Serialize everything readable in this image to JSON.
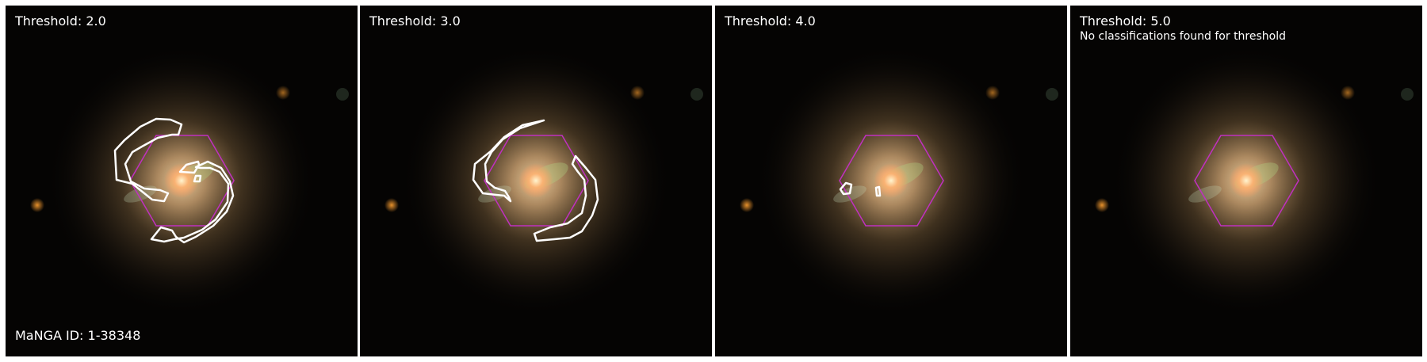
{
  "panels": [
    {
      "title": "Threshold: 2.0",
      "note": "",
      "contours": "multi-arm"
    },
    {
      "title": "Threshold: 3.0",
      "note": "",
      "contours": "two-arm"
    },
    {
      "title": "Threshold: 4.0",
      "note": "",
      "contours": "small-blobs"
    },
    {
      "title": "Threshold: 5.0",
      "note": "No classifications found for threshold",
      "contours": "none"
    }
  ],
  "galaxy_id": "MaNGA ID: 1-38348",
  "colors": {
    "background": "#050403",
    "contour": "#ffffff",
    "hexagon": "#c030c0",
    "galaxy_core": "#ffc890"
  },
  "icons": {
    "hexagon": "ifu-footprint-hexagon",
    "contour": "spiral-arm-contour"
  }
}
